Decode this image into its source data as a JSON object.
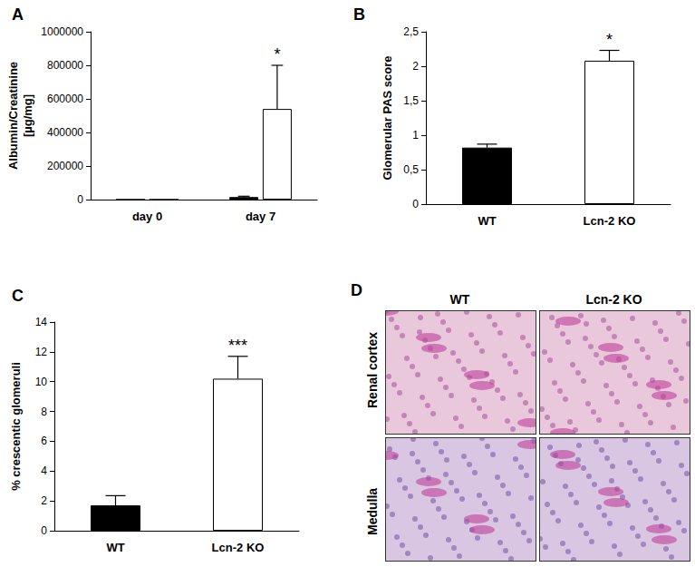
{
  "chart_data": [
    {
      "type": "bar",
      "title": "A",
      "ylabel": "Albumin/Creatinine\n[µg/mg]",
      "categories": [
        "day 0",
        "day 7"
      ],
      "series": [
        {
          "color": "#000000",
          "values": [
            0,
            15000
          ],
          "errors": [
            0,
            5000
          ],
          "annotations": [
            null,
            null
          ]
        },
        {
          "color": "#ffffff",
          "values": [
            0,
            540000
          ],
          "errors": [
            0,
            260000
          ],
          "annotations": [
            null,
            "*"
          ]
        }
      ],
      "ylim": [
        0,
        1000000
      ],
      "yticks": [
        0,
        200000,
        400000,
        600000,
        800000,
        1000000
      ],
      "grid": false
    },
    {
      "type": "bar",
      "title": "B",
      "ylabel": "Glomerular PAS score",
      "categories": [
        "WT",
        "Lcn-2 KO"
      ],
      "values": [
        0.82,
        2.08
      ],
      "errors": [
        0.05,
        0.15
      ],
      "colors": [
        "#000000",
        "#ffffff"
      ],
      "annotations": [
        null,
        "*"
      ],
      "ylim": [
        0,
        2.5
      ],
      "yticks": [
        0,
        {
          "value": 0.5,
          "label": "0,5"
        },
        1,
        {
          "value": 1.5,
          "label": "1,5"
        },
        2,
        {
          "value": 2.5,
          "label": "2,5"
        }
      ],
      "grid": false
    },
    {
      "type": "bar",
      "title": "C",
      "ylabel": "% crescentic glomeruli",
      "categories": [
        "WT",
        "Lcn-2 KO"
      ],
      "values": [
        1.7,
        10.2
      ],
      "errors": [
        0.65,
        1.5
      ],
      "colors": [
        "#000000",
        "#ffffff"
      ],
      "annotations": [
        null,
        "***"
      ],
      "ylim": [
        0,
        14
      ],
      "yticks": [
        0,
        2,
        4,
        6,
        8,
        10,
        12,
        14
      ],
      "grid": false
    }
  ],
  "image_panel": {
    "title": "D",
    "columns": [
      "WT",
      "Lcn-2 KO"
    ],
    "rows": [
      "Renal cortex",
      "Medulla"
    ]
  }
}
